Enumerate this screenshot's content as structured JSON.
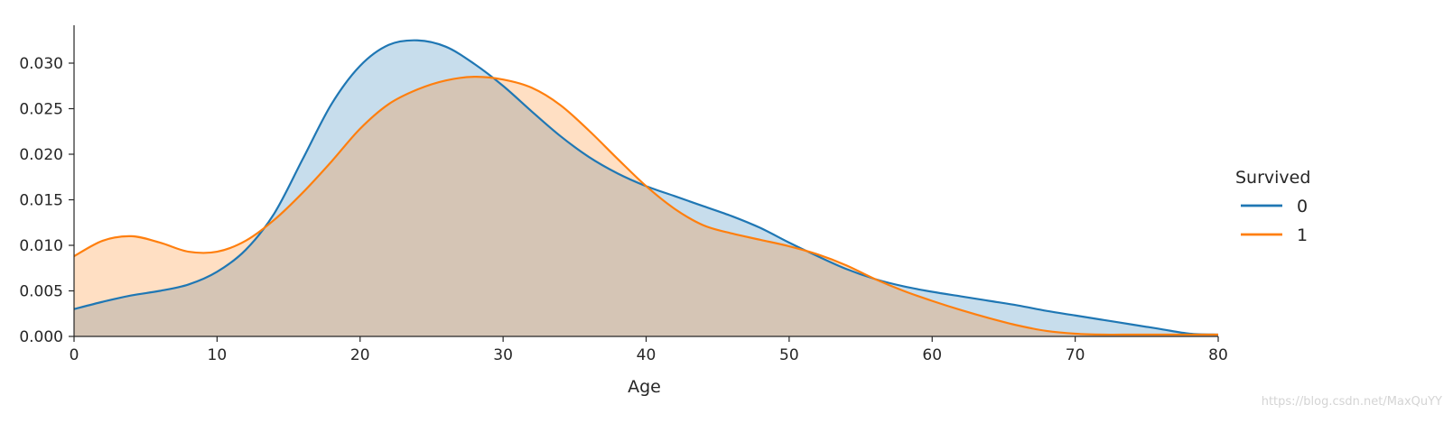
{
  "chart_data": {
    "type": "area",
    "title": "",
    "xlabel": "Age",
    "ylabel": "",
    "xlim": [
      0,
      80
    ],
    "ylim": [
      0,
      0.034
    ],
    "xticks": [
      0,
      10,
      20,
      30,
      40,
      50,
      60,
      70,
      80
    ],
    "xtick_labels": [
      "0",
      "10",
      "20",
      "30",
      "40",
      "50",
      "60",
      "70",
      "80"
    ],
    "yticks": [
      0,
      0.005,
      0.01,
      0.015,
      0.02,
      0.025,
      0.03
    ],
    "ytick_labels": [
      "0.000",
      "0.005",
      "0.010",
      "0.015",
      "0.020",
      "0.025",
      "0.030"
    ],
    "grid": false,
    "legend": {
      "title": "Survived",
      "placement": "right"
    },
    "series": [
      {
        "name": "0",
        "color": "#1f77b4",
        "x": [
          0,
          2,
          4,
          6,
          8,
          10,
          12,
          14,
          16,
          18,
          20,
          22,
          24,
          26,
          28,
          30,
          32,
          34,
          36,
          38,
          40,
          42,
          44,
          46,
          48,
          50,
          52,
          54,
          56,
          58,
          60,
          62,
          64,
          66,
          68,
          70,
          72,
          74,
          76,
          78,
          80
        ],
        "y": [
          0.003,
          0.0038,
          0.0045,
          0.005,
          0.0057,
          0.0071,
          0.0095,
          0.0135,
          0.0195,
          0.0255,
          0.0297,
          0.032,
          0.0325,
          0.0318,
          0.0299,
          0.0275,
          0.0247,
          0.022,
          0.0197,
          0.0179,
          0.0165,
          0.0154,
          0.0143,
          0.0132,
          0.0119,
          0.0103,
          0.0088,
          0.0074,
          0.0063,
          0.0055,
          0.0049,
          0.0044,
          0.0039,
          0.0034,
          0.0028,
          0.0023,
          0.0018,
          0.0013,
          0.0008,
          0.0003,
          0.0002
        ]
      },
      {
        "name": "1",
        "color": "#ff7f0e",
        "x": [
          0,
          2,
          4,
          6,
          8,
          10,
          12,
          14,
          16,
          18,
          20,
          22,
          24,
          26,
          28,
          30,
          32,
          34,
          36,
          38,
          40,
          42,
          44,
          46,
          48,
          50,
          52,
          54,
          56,
          58,
          60,
          62,
          64,
          66,
          68,
          70,
          72,
          74,
          76,
          78,
          80
        ],
        "y": [
          0.0088,
          0.0105,
          0.011,
          0.0103,
          0.0093,
          0.0093,
          0.0105,
          0.0128,
          0.0158,
          0.0192,
          0.0228,
          0.0255,
          0.0271,
          0.0281,
          0.0285,
          0.0282,
          0.0273,
          0.0254,
          0.0226,
          0.0195,
          0.0165,
          0.014,
          0.0122,
          0.0113,
          0.0106,
          0.0099,
          0.009,
          0.0078,
          0.0063,
          0.005,
          0.0039,
          0.0029,
          0.002,
          0.0012,
          0.0006,
          0.0003,
          0.0002,
          0.0002,
          0.0002,
          0.0002,
          0.0002
        ]
      }
    ]
  },
  "watermark": "https://blog.csdn.net/MaxQuYY"
}
